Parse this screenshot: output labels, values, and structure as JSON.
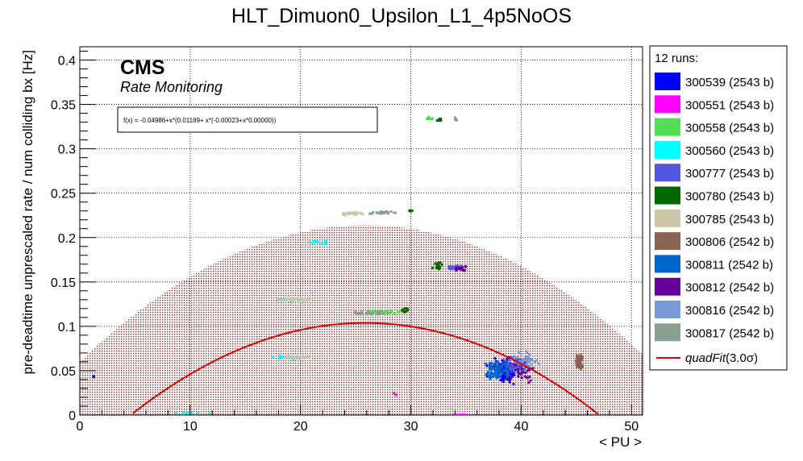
{
  "chart_data": {
    "type": "scatter",
    "title": "HLT_Dimuon0_Upsilon_L1_4p5NoOS",
    "xlabel": "< PU >",
    "ylabel": "pre-deadtime unprescaled rate / num colliding bx [Hz]",
    "xlim": [
      0,
      51
    ],
    "ylim": [
      0,
      0.415
    ],
    "x_ticks": [
      "0",
      "10",
      "20",
      "30",
      "40",
      "50"
    ],
    "y_ticks": [
      "0",
      "0.05",
      "0.1",
      "0.15",
      "0.2",
      "0.25",
      "0.3",
      "0.35",
      "0.4"
    ],
    "grid": true,
    "legend_placement": "right",
    "cms_label": "CMS",
    "cms_sublabel": "Rate Monitoring",
    "fit_formula": "f(x) = -0.04986+x*(0.01189+ x*(-0.00023+x*0.00000))",
    "fit": {
      "coefficients": [
        -0.04986,
        0.01189,
        -0.00023,
        0.0
      ],
      "band_sigma": 3.0,
      "band_halfwidth": 0.11,
      "color": "#dd0000",
      "band_color": "#a03030"
    },
    "legend_header": "12 runs:",
    "series": [
      {
        "name": "300539 (2543 b)",
        "color": "#0000ff",
        "clusters": [
          [
            38.5,
            0.05,
            2.2,
            0.012,
            120
          ],
          [
            1.3,
            0.043,
            0.2,
            0.002,
            2
          ]
        ]
      },
      {
        "name": "300551 (2543 b)",
        "color": "#ff00ff",
        "clusters": [
          [
            34.5,
            0.0,
            1.5,
            0.0005,
            20
          ],
          [
            28.5,
            0.025,
            0.3,
            0.002,
            2
          ]
        ]
      },
      {
        "name": "300558 (2543 b)",
        "color": "#55dd55",
        "clusters": [
          [
            27.5,
            0.116,
            2.5,
            0.0015,
            40
          ],
          [
            31.8,
            0.334,
            0.6,
            0.002,
            8
          ]
        ]
      },
      {
        "name": "300560 (2543 b)",
        "color": "#00ffff",
        "clusters": [
          [
            19.0,
            0.065,
            2.2,
            0.0015,
            40
          ],
          [
            19.0,
            0.13,
            1.8,
            0.0015,
            25
          ],
          [
            21.5,
            0.195,
            1.3,
            0.002,
            12
          ],
          [
            10.0,
            0.002,
            6.0,
            0.0008,
            10
          ]
        ]
      },
      {
        "name": "300777 (2543 b)",
        "color": "#5555dd",
        "clusters": [
          [
            34.0,
            0.166,
            1.4,
            0.002,
            40
          ],
          [
            39.5,
            0.055,
            2.0,
            0.01,
            60
          ]
        ]
      },
      {
        "name": "300780 (2543 b)",
        "color": "#006600",
        "clusters": [
          [
            32.5,
            0.168,
            0.8,
            0.004,
            18
          ],
          [
            32.5,
            0.333,
            0.5,
            0.0015,
            8
          ],
          [
            29.5,
            0.118,
            0.8,
            0.003,
            10
          ],
          [
            30.0,
            0.23,
            0.4,
            0.001,
            5
          ]
        ]
      },
      {
        "name": "300785 (2543 b)",
        "color": "#ccc5a8",
        "clusters": [
          [
            24.5,
            0.227,
            1.8,
            0.0015,
            35
          ],
          [
            19.5,
            0.13,
            2.2,
            0.0015,
            40
          ],
          [
            19.5,
            0.065,
            2.2,
            0.0015,
            30
          ]
        ]
      },
      {
        "name": "300806 (2542 b)",
        "color": "#8b6352",
        "clusters": [
          [
            45.3,
            0.06,
            0.6,
            0.01,
            60
          ]
        ]
      },
      {
        "name": "300811 (2542 b)",
        "color": "#0066cc",
        "clusters": [
          [
            37.8,
            0.05,
            1.8,
            0.01,
            80
          ]
        ]
      },
      {
        "name": "300812 (2542 b)",
        "color": "#660099",
        "clusters": [
          [
            34.5,
            0.165,
            1.2,
            0.0025,
            20
          ],
          [
            40.0,
            0.05,
            2.0,
            0.01,
            40
          ]
        ]
      },
      {
        "name": "300816 (2542 b)",
        "color": "#7799d5",
        "clusters": [
          [
            34.0,
            0.333,
            0.5,
            0.0015,
            8
          ],
          [
            40.5,
            0.06,
            2.0,
            0.009,
            40
          ]
        ]
      },
      {
        "name": "300817 (2542 b)",
        "color": "#88a090",
        "clusters": [
          [
            27.5,
            0.228,
            2.0,
            0.0015,
            35
          ],
          [
            26.5,
            0.115,
            2.5,
            0.0015,
            30
          ]
        ]
      }
    ],
    "fit_legend_label": "quadFit",
    "fit_legend_suffix": "(3.0σ)"
  }
}
